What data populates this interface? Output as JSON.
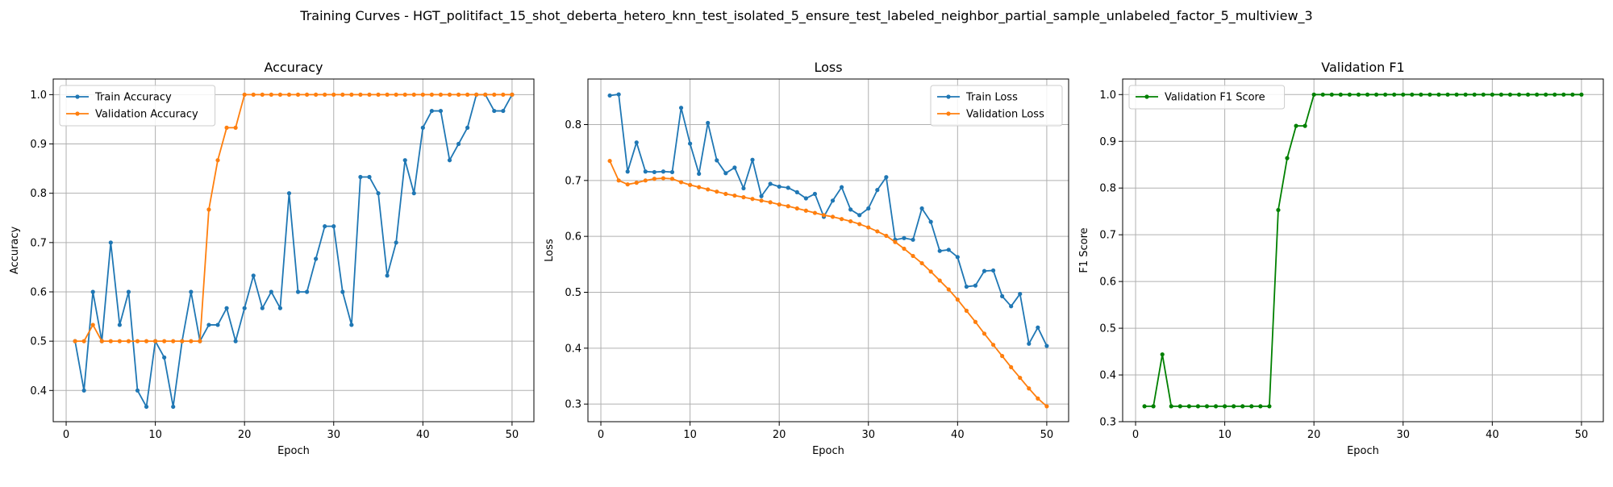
{
  "figure": {
    "suptitle": "Training Curves - HGT_politifact_15_shot_deberta_hetero_knn_test_isolated_5_ensure_test_labeled_neighbor_partial_sample_unlabeled_factor_5_multiview_3"
  },
  "colors": {
    "blue": "#1f77b4",
    "orange": "#ff7f0e",
    "green": "#008000",
    "grid": "#b0b0b0"
  },
  "chart_data": [
    {
      "type": "line",
      "title": "Accuracy",
      "xlabel": "Epoch",
      "ylabel": "Accuracy",
      "xlim": [
        -1.45,
        52.45
      ],
      "ylim": [
        0.3367,
        1.0317
      ],
      "xticks": [
        0,
        10,
        20,
        30,
        40,
        50
      ],
      "yticks": [
        0.4,
        0.5,
        0.6,
        0.7,
        0.8,
        0.9,
        1.0
      ],
      "ytick_labels": [
        "0.4",
        "0.5",
        "0.6",
        "0.7",
        "0.8",
        "0.9",
        "1.0"
      ],
      "grid": true,
      "legend_loc": "upper left",
      "x": [
        1,
        2,
        3,
        4,
        5,
        6,
        7,
        8,
        9,
        10,
        11,
        12,
        13,
        14,
        15,
        16,
        17,
        18,
        19,
        20,
        21,
        22,
        23,
        24,
        25,
        26,
        27,
        28,
        29,
        30,
        31,
        32,
        33,
        34,
        35,
        36,
        37,
        38,
        39,
        40,
        41,
        42,
        43,
        44,
        45,
        46,
        47,
        48,
        49,
        50
      ],
      "series": [
        {
          "name": "Train Accuracy",
          "color": "#1f77b4",
          "values": [
            0.5,
            0.4,
            0.6,
            0.5,
            0.7,
            0.533,
            0.6,
            0.4,
            0.367,
            0.5,
            0.467,
            0.367,
            0.5,
            0.6,
            0.5,
            0.533,
            0.533,
            0.567,
            0.5,
            0.567,
            0.633,
            0.567,
            0.6,
            0.567,
            0.8,
            0.6,
            0.6,
            0.667,
            0.733,
            0.733,
            0.6,
            0.533,
            0.833,
            0.833,
            0.8,
            0.633,
            0.7,
            0.867,
            0.8,
            0.933,
            0.967,
            0.967,
            0.867,
            0.9,
            0.933,
            1.0,
            1.0,
            0.967,
            0.967,
            1.0
          ]
        },
        {
          "name": "Validation Accuracy",
          "color": "#ff7f0e",
          "values": [
            0.5,
            0.5,
            0.533,
            0.5,
            0.5,
            0.5,
            0.5,
            0.5,
            0.5,
            0.5,
            0.5,
            0.5,
            0.5,
            0.5,
            0.5,
            0.767,
            0.867,
            0.933,
            0.933,
            1.0,
            1.0,
            1.0,
            1.0,
            1.0,
            1.0,
            1.0,
            1.0,
            1.0,
            1.0,
            1.0,
            1.0,
            1.0,
            1.0,
            1.0,
            1.0,
            1.0,
            1.0,
            1.0,
            1.0,
            1.0,
            1.0,
            1.0,
            1.0,
            1.0,
            1.0,
            1.0,
            1.0,
            1.0,
            1.0,
            1.0
          ]
        }
      ]
    },
    {
      "type": "line",
      "title": "Loss",
      "xlabel": "Epoch",
      "ylabel": "Loss",
      "xlim": [
        -1.45,
        52.45
      ],
      "ylim": [
        0.2685,
        0.8815
      ],
      "xticks": [
        0,
        10,
        20,
        30,
        40,
        50
      ],
      "yticks": [
        0.3,
        0.4,
        0.5,
        0.6,
        0.7,
        0.8
      ],
      "ytick_labels": [
        "0.3",
        "0.4",
        "0.5",
        "0.6",
        "0.7",
        "0.8"
      ],
      "grid": true,
      "legend_loc": "upper right",
      "x": [
        1,
        2,
        3,
        4,
        5,
        6,
        7,
        8,
        9,
        10,
        11,
        12,
        13,
        14,
        15,
        16,
        17,
        18,
        19,
        20,
        21,
        22,
        23,
        24,
        25,
        26,
        27,
        28,
        29,
        30,
        31,
        32,
        33,
        34,
        35,
        36,
        37,
        38,
        39,
        40,
        41,
        42,
        43,
        44,
        45,
        46,
        47,
        48,
        49,
        50
      ],
      "series": [
        {
          "name": "Train Loss",
          "color": "#1f77b4",
          "values": [
            0.852,
            0.854,
            0.716,
            0.768,
            0.716,
            0.715,
            0.716,
            0.715,
            0.83,
            0.766,
            0.712,
            0.803,
            0.736,
            0.713,
            0.723,
            0.686,
            0.737,
            0.672,
            0.694,
            0.689,
            0.687,
            0.679,
            0.668,
            0.676,
            0.635,
            0.664,
            0.688,
            0.648,
            0.638,
            0.65,
            0.683,
            0.706,
            0.594,
            0.597,
            0.594,
            0.65,
            0.626,
            0.574,
            0.576,
            0.563,
            0.51,
            0.512,
            0.538,
            0.539,
            0.493,
            0.475,
            0.497,
            0.408,
            0.437,
            0.404
          ]
        },
        {
          "name": "Validation Loss",
          "color": "#ff7f0e",
          "values": [
            0.735,
            0.7,
            0.693,
            0.696,
            0.7,
            0.703,
            0.704,
            0.703,
            0.697,
            0.692,
            0.688,
            0.684,
            0.68,
            0.676,
            0.673,
            0.67,
            0.667,
            0.664,
            0.661,
            0.657,
            0.654,
            0.65,
            0.646,
            0.642,
            0.638,
            0.635,
            0.631,
            0.627,
            0.622,
            0.616,
            0.609,
            0.601,
            0.59,
            0.578,
            0.565,
            0.552,
            0.537,
            0.521,
            0.505,
            0.487,
            0.467,
            0.447,
            0.426,
            0.406,
            0.386,
            0.366,
            0.347,
            0.328,
            0.31,
            0.296
          ]
        }
      ]
    },
    {
      "type": "line",
      "title": "Validation F1",
      "xlabel": "Epoch",
      "ylabel": "F1 Score",
      "xlim": [
        -1.45,
        52.45
      ],
      "ylim": [
        0.3,
        1.0333
      ],
      "xticks": [
        0,
        10,
        20,
        30,
        40,
        50
      ],
      "yticks": [
        0.3,
        0.4,
        0.5,
        0.6,
        0.7,
        0.8,
        0.9,
        1.0
      ],
      "ytick_labels": [
        "0.3",
        "0.4",
        "0.5",
        "0.6",
        "0.7",
        "0.8",
        "0.9",
        "1.0"
      ],
      "grid": true,
      "legend_loc": "upper left",
      "x": [
        1,
        2,
        3,
        4,
        5,
        6,
        7,
        8,
        9,
        10,
        11,
        12,
        13,
        14,
        15,
        16,
        17,
        18,
        19,
        20,
        21,
        22,
        23,
        24,
        25,
        26,
        27,
        28,
        29,
        30,
        31,
        32,
        33,
        34,
        35,
        36,
        37,
        38,
        39,
        40,
        41,
        42,
        43,
        44,
        45,
        46,
        47,
        48,
        49,
        50
      ],
      "series": [
        {
          "name": "Validation F1 Score",
          "color": "#008000",
          "values": [
            0.333,
            0.333,
            0.444,
            0.333,
            0.333,
            0.333,
            0.333,
            0.333,
            0.333,
            0.333,
            0.333,
            0.333,
            0.333,
            0.333,
            0.333,
            0.753,
            0.864,
            0.933,
            0.933,
            1.0,
            1.0,
            1.0,
            1.0,
            1.0,
            1.0,
            1.0,
            1.0,
            1.0,
            1.0,
            1.0,
            1.0,
            1.0,
            1.0,
            1.0,
            1.0,
            1.0,
            1.0,
            1.0,
            1.0,
            1.0,
            1.0,
            1.0,
            1.0,
            1.0,
            1.0,
            1.0,
            1.0,
            1.0,
            1.0,
            1.0
          ]
        }
      ]
    }
  ]
}
